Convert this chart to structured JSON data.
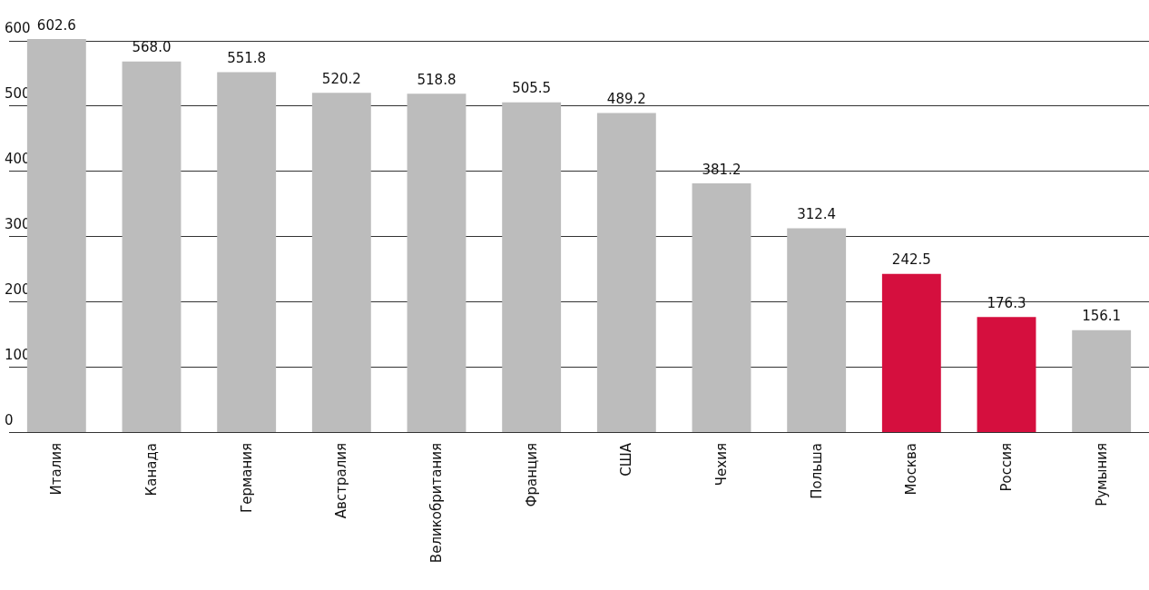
{
  "chart_data": {
    "type": "bar",
    "categories": [
      "Италия",
      "Канада",
      "Германия",
      "Австралия",
      "Великобритания",
      "Франция",
      "США",
      "Чехия",
      "Польша",
      "Москва",
      "Россия",
      "Румыния"
    ],
    "values": [
      602.6,
      568.0,
      551.8,
      520.2,
      518.8,
      505.5,
      489.2,
      381.2,
      312.4,
      242.5,
      176.3,
      156.1
    ],
    "colors": [
      "#bcbcbc",
      "#bcbcbc",
      "#bcbcbc",
      "#bcbcbc",
      "#bcbcbc",
      "#bcbcbc",
      "#bcbcbc",
      "#bcbcbc",
      "#bcbcbc",
      "#d50f3e",
      "#d50f3e",
      "#bcbcbc"
    ],
    "value_labels": [
      "602.6",
      "568.0",
      "551.8",
      "520.2",
      "518.8",
      "505.5",
      "489.2",
      "381.2",
      "312.4",
      "242.5",
      "176.3",
      "156.1"
    ],
    "ylim": [
      0,
      602.6
    ],
    "yticks": [
      0,
      100,
      200,
      300,
      400,
      500,
      600
    ],
    "grid": "y"
  }
}
